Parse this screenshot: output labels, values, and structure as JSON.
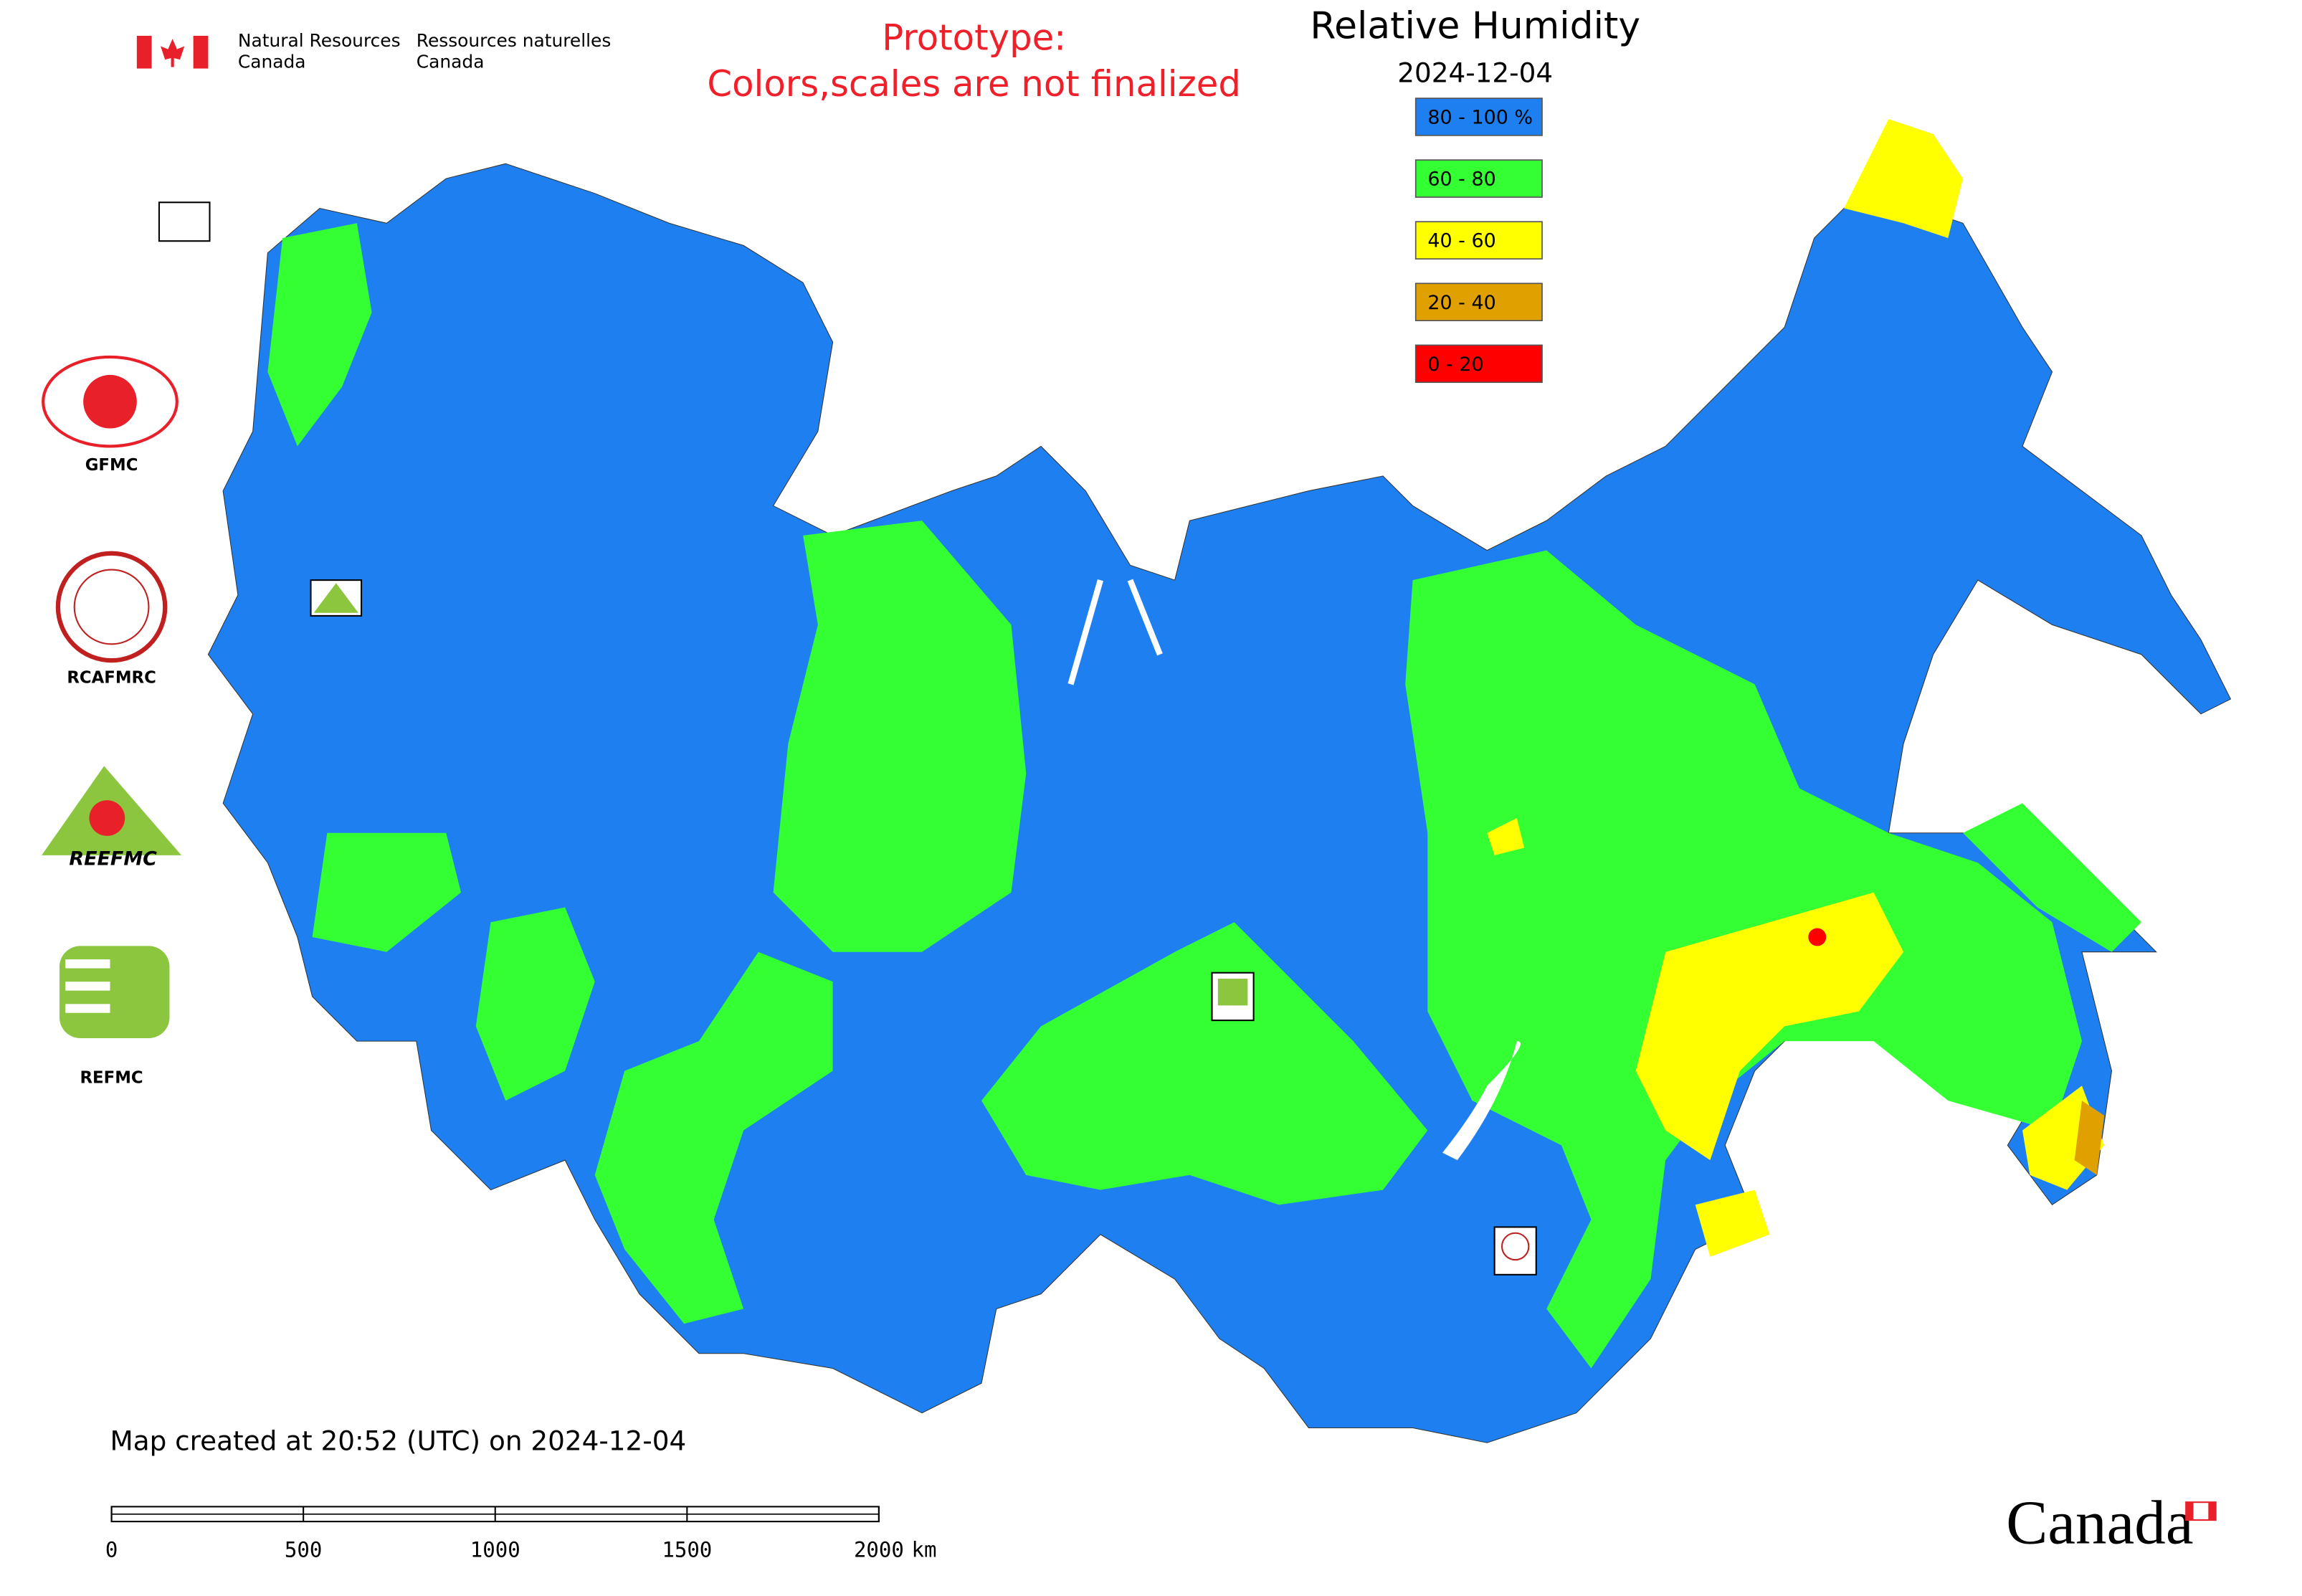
{
  "header": {
    "org_en_1": "Natural Resources",
    "org_en_2": "Canada",
    "org_fr_1": "Ressources naturelles",
    "org_fr_2": "Canada"
  },
  "notice": [
    "Prototype:",
    "Colors,scales are not finalized"
  ],
  "title": "Relative Humidity",
  "date": "2024-12-04",
  "legend": [
    {
      "label": "80 - 100 %",
      "color": "#1e80f0"
    },
    {
      "label": "60 - 80",
      "color": "#33ff33"
    },
    {
      "label": "40 - 60",
      "color": "#ffff00"
    },
    {
      "label": "20 - 40",
      "color": "#e0a000"
    },
    {
      "label": "0 - 20",
      "color": "#ff0000"
    }
  ],
  "logos": [
    "GFMC",
    "RCAFMRC",
    "REEFMC",
    "REFMC"
  ],
  "footer": "Map created at 20:52 (UTC) on 2024-12-04",
  "scale_bar": {
    "ticks": [
      0,
      500,
      1000,
      1500,
      2000
    ],
    "unit": "km"
  },
  "wordmark": "Canada"
}
